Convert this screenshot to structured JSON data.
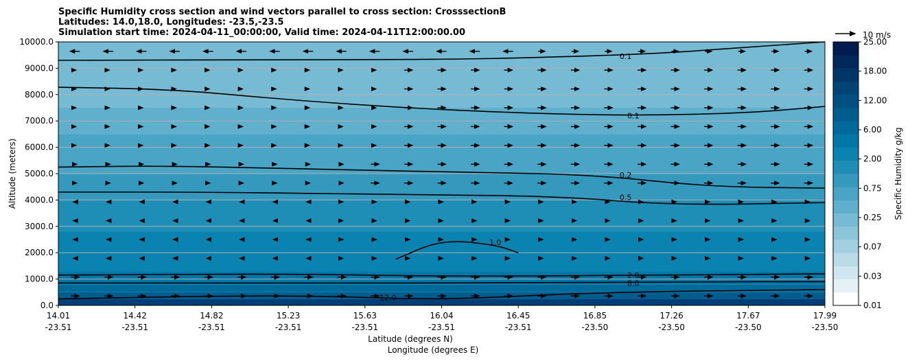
{
  "chart_data": {
    "type": "heatmap",
    "title_lines": [
      "Specific Humidity cross section and wind vectors parallel to cross section: CrosssectionB",
      "Latitudes: 14.0,18.0, Longitudes: -23.5,-23.5",
      "Simulation start time: 2024-04-11_00:00:00, Valid time: 2024-04-11T12:00:00.00"
    ],
    "ylabel": "Altitude (meters)",
    "xlabel": "Latitude (degrees N)",
    "xlabel2": "Longitude (degrees E)",
    "ylim": [
      0,
      10000
    ],
    "y_ticks": [
      "0.0",
      "1000.0",
      "2000.0",
      "3000.0",
      "4000.0",
      "5000.0",
      "6000.0",
      "7000.0",
      "8000.0",
      "9000.0",
      "10000.0"
    ],
    "x_ticks": [
      {
        "lat": "14.01",
        "lon": "-23.51"
      },
      {
        "lat": "14.42",
        "lon": "-23.51"
      },
      {
        "lat": "14.82",
        "lon": "-23.51"
      },
      {
        "lat": "15.23",
        "lon": "-23.51"
      },
      {
        "lat": "15.63",
        "lon": "-23.51"
      },
      {
        "lat": "16.04",
        "lon": "-23.51"
      },
      {
        "lat": "16.45",
        "lon": "-23.51"
      },
      {
        "lat": "16.85",
        "lon": "-23.50"
      },
      {
        "lat": "17.26",
        "lon": "-23.50"
      },
      {
        "lat": "17.67",
        "lon": "-23.50"
      },
      {
        "lat": "17.99",
        "lon": "-23.50"
      }
    ],
    "grid": true,
    "colorbar": {
      "label": "Specific Humidity g/kg",
      "tick_labels": [
        "0.01",
        "0.03",
        "0.07",
        "0.25",
        "0.75",
        "2.00",
        "6.00",
        "12.00",
        "18.00",
        "25.00"
      ],
      "colors": [
        "#ffffff",
        "#e6f1f5",
        "#cfe6ee",
        "#b8dbe7",
        "#a2d0e0",
        "#8cc5da",
        "#76bad3",
        "#60afcc",
        "#4aa4c5",
        "#3599be",
        "#1f8eb7",
        "#0a83b0",
        "#0077a6",
        "#006a9a",
        "#005d8d",
        "#005081",
        "#004374",
        "#003668",
        "#00295b",
        "#001c4f"
      ]
    },
    "quiver_key": "10 m/s",
    "altitude_bands": [
      {
        "from": 0,
        "to": 250,
        "color": "#003e75"
      },
      {
        "from": 250,
        "to": 500,
        "color": "#005d8d"
      },
      {
        "from": 500,
        "to": 800,
        "color": "#006a9a"
      },
      {
        "from": 800,
        "to": 1300,
        "color": "#0077a6"
      },
      {
        "from": 1300,
        "to": 2800,
        "color": "#0a83b0"
      },
      {
        "from": 2800,
        "to": 4000,
        "color": "#1f8eb7"
      },
      {
        "from": 4000,
        "to": 5000,
        "color": "#3599be"
      },
      {
        "from": 5000,
        "to": 6500,
        "color": "#4aa4c5"
      },
      {
        "from": 6500,
        "to": 7500,
        "color": "#60afcc"
      },
      {
        "from": 7500,
        "to": 9000,
        "color": "#76bad3"
      },
      {
        "from": 9000,
        "to": 10000,
        "color": "#76bad3"
      }
    ],
    "contours": [
      {
        "label": "0.1",
        "label_at": [
          0.74,
          9450
        ],
        "points": [
          [
            0,
            9300
          ],
          [
            0.25,
            9320
          ],
          [
            0.5,
            9330
          ],
          [
            0.62,
            9400
          ],
          [
            0.78,
            9550
          ],
          [
            0.9,
            9800
          ],
          [
            1,
            10000
          ]
        ]
      },
      {
        "label": "0.1",
        "label_at": [
          0.75,
          7200
        ],
        "points": [
          [
            0,
            8280
          ],
          [
            0.15,
            8200
          ],
          [
            0.3,
            7800
          ],
          [
            0.45,
            7500
          ],
          [
            0.6,
            7300
          ],
          [
            0.75,
            7200
          ],
          [
            0.9,
            7300
          ],
          [
            1,
            7550
          ]
        ]
      },
      {
        "label": "0.2",
        "label_at": [
          0.74,
          4950
        ],
        "points": [
          [
            0,
            5250
          ],
          [
            0.15,
            5300
          ],
          [
            0.35,
            5150
          ],
          [
            0.55,
            5050
          ],
          [
            0.7,
            4950
          ],
          [
            0.85,
            4500
          ],
          [
            1,
            4450
          ]
        ]
      },
      {
        "label": "0.5",
        "label_at": [
          0.74,
          4100
        ],
        "points": [
          [
            0,
            4300
          ],
          [
            0.2,
            4300
          ],
          [
            0.45,
            4200
          ],
          [
            0.65,
            4150
          ],
          [
            0.8,
            3800
          ],
          [
            1,
            3900
          ]
        ]
      },
      {
        "label": "1.0",
        "label_at": [
          0.57,
          2400
        ],
        "points": [
          [
            0.44,
            1750
          ],
          [
            0.5,
            2500
          ],
          [
            0.57,
            2300
          ],
          [
            0.6,
            2000
          ]
        ]
      },
      {
        "label": "2.0",
        "label_at": [
          0.75,
          1150
        ],
        "points": [
          [
            0,
            1150
          ],
          [
            0.3,
            1200
          ],
          [
            0.5,
            1100
          ],
          [
            0.8,
            1150
          ],
          [
            1,
            1200
          ]
        ]
      },
      {
        "label": "8.0",
        "label_at": [
          0.75,
          850
        ],
        "points": [
          [
            0,
            850
          ],
          [
            0.3,
            850
          ],
          [
            0.6,
            850
          ],
          [
            0.85,
            900
          ],
          [
            1,
            900
          ]
        ]
      },
      {
        "label": "12.0",
        "label_at": [
          0.43,
          300
        ],
        "points": [
          [
            0,
            250
          ],
          [
            0.3,
            400
          ],
          [
            0.5,
            200
          ],
          [
            0.7,
            500
          ],
          [
            1,
            600
          ]
        ]
      }
    ]
  }
}
